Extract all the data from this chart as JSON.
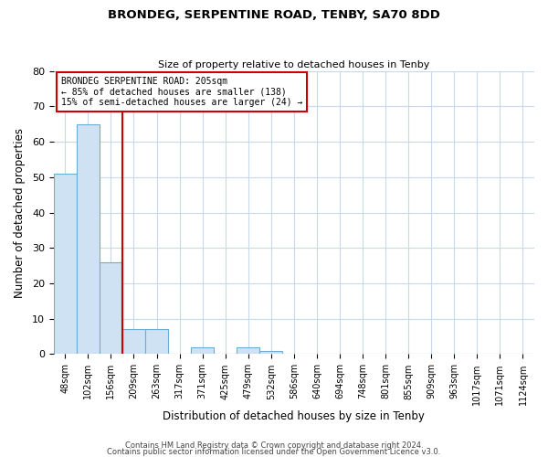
{
  "title": "BRONDEG, SERPENTINE ROAD, TENBY, SA70 8DD",
  "subtitle": "Size of property relative to detached houses in Tenby",
  "xlabel": "Distribution of detached houses by size in Tenby",
  "ylabel": "Number of detached properties",
  "bin_labels": [
    "48sqm",
    "102sqm",
    "156sqm",
    "209sqm",
    "263sqm",
    "317sqm",
    "371sqm",
    "425sqm",
    "479sqm",
    "532sqm",
    "586sqm",
    "640sqm",
    "694sqm",
    "748sqm",
    "801sqm",
    "855sqm",
    "909sqm",
    "963sqm",
    "1017sqm",
    "1071sqm",
    "1124sqm"
  ],
  "bar_heights": [
    51,
    65,
    26,
    7,
    7,
    0,
    2,
    0,
    2,
    1,
    0,
    0,
    0,
    0,
    0,
    0,
    0,
    0,
    0,
    0
  ],
  "bar_color": "#cfe2f3",
  "bar_edge_color": "#6aaed6",
  "property_line_color": "#cc0000",
  "property_line_bin_index": 3,
  "ylim": [
    0,
    80
  ],
  "annotation_text_line1": "BRONDEG SERPENTINE ROAD: 205sqm",
  "annotation_text_line2": "← 85% of detached houses are smaller (138)",
  "annotation_text_line3": "15% of semi-detached houses are larger (24) →",
  "annotation_box_edge_color": "#cc0000",
  "footer_line1": "Contains HM Land Registry data © Crown copyright and database right 2024.",
  "footer_line2": "Contains public sector information licensed under the Open Government Licence v3.0.",
  "background_color": "#ffffff",
  "grid_color": "#c8d9ed",
  "title_fontsize": 9.5,
  "subtitle_fontsize": 8,
  "axis_label_fontsize": 8.5,
  "tick_fontsize": 7,
  "footer_fontsize": 6
}
